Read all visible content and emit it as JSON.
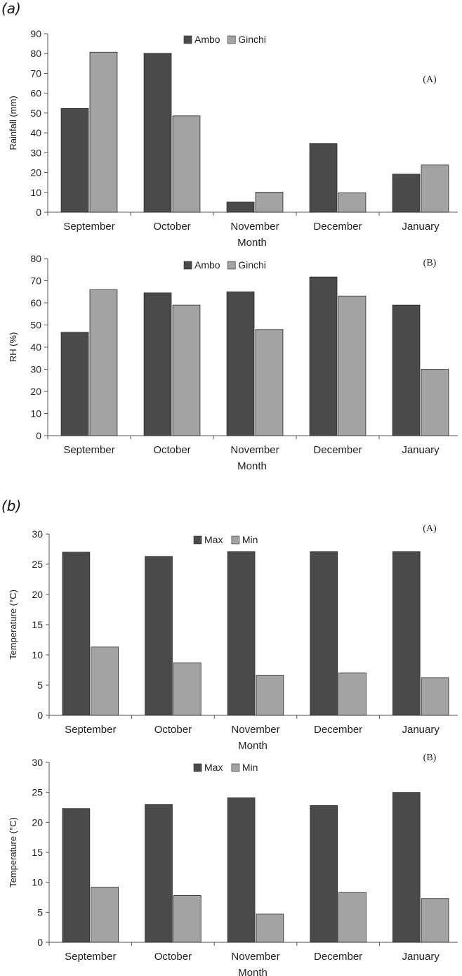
{
  "figure": {
    "panel_a_label": "(a)",
    "panel_b_label": "(b)"
  },
  "colors": {
    "dark": "#4a4a4a",
    "light": "#a3a3a3",
    "axis": "#555555",
    "text": "#222222"
  },
  "chart_data": [
    {
      "type": "bar",
      "panel_tag": "(A)",
      "categories": [
        "September",
        "October",
        "November",
        "December",
        "January"
      ],
      "series": [
        {
          "name": "Ambo",
          "values": [
            52.3,
            80.1,
            5.2,
            34.6,
            19.2
          ]
        },
        {
          "name": "Ginchi",
          "values": [
            80.7,
            48.6,
            10.1,
            9.8,
            23.8
          ]
        }
      ],
      "xlabel": "Month",
      "ylabel": "Rainfall (mm)",
      "ylim": [
        0,
        90
      ],
      "yticks": [
        0,
        10,
        20,
        30,
        40,
        50,
        60,
        70,
        80,
        90
      ],
      "legend": "top-center",
      "grid": false
    },
    {
      "type": "bar",
      "panel_tag": "(B)",
      "categories": [
        "September",
        "October",
        "November",
        "December",
        "January"
      ],
      "series": [
        {
          "name": "Ambo",
          "values": [
            46.7,
            64.5,
            65.0,
            71.7,
            59.0
          ]
        },
        {
          "name": "Ginchi",
          "values": [
            66.0,
            59.0,
            48.0,
            63.1,
            30.0
          ]
        }
      ],
      "xlabel": "Month",
      "ylabel": "RH (%)",
      "ylim": [
        0,
        80
      ],
      "yticks": [
        0,
        10,
        20,
        30,
        40,
        50,
        60,
        70,
        80
      ],
      "legend": "top-center",
      "grid": false
    },
    {
      "type": "bar",
      "panel_tag": "(A)",
      "categories": [
        "September",
        "October",
        "November",
        "December",
        "January"
      ],
      "series": [
        {
          "name": "Max",
          "values": [
            27.0,
            26.3,
            27.1,
            27.1,
            27.1
          ]
        },
        {
          "name": "Min",
          "values": [
            11.3,
            8.7,
            6.6,
            7.0,
            6.2
          ]
        }
      ],
      "xlabel": "Month",
      "ylabel": "Temperature (°C)",
      "ylim": [
        0,
        30
      ],
      "yticks": [
        0,
        5,
        10,
        15,
        20,
        25,
        30
      ],
      "legend": "top-center",
      "grid": false
    },
    {
      "type": "bar",
      "panel_tag": "(B)",
      "categories": [
        "September",
        "October",
        "November",
        "December",
        "January"
      ],
      "series": [
        {
          "name": "Max",
          "values": [
            22.3,
            23.0,
            24.1,
            22.8,
            25.0
          ]
        },
        {
          "name": "Min",
          "values": [
            9.2,
            7.8,
            4.7,
            8.3,
            7.3
          ]
        }
      ],
      "xlabel": "Month",
      "ylabel": "Temperature (°C)",
      "ylim": [
        0,
        30
      ],
      "yticks": [
        0,
        5,
        10,
        15,
        20,
        25,
        30
      ],
      "legend": "top-center",
      "grid": false
    }
  ]
}
